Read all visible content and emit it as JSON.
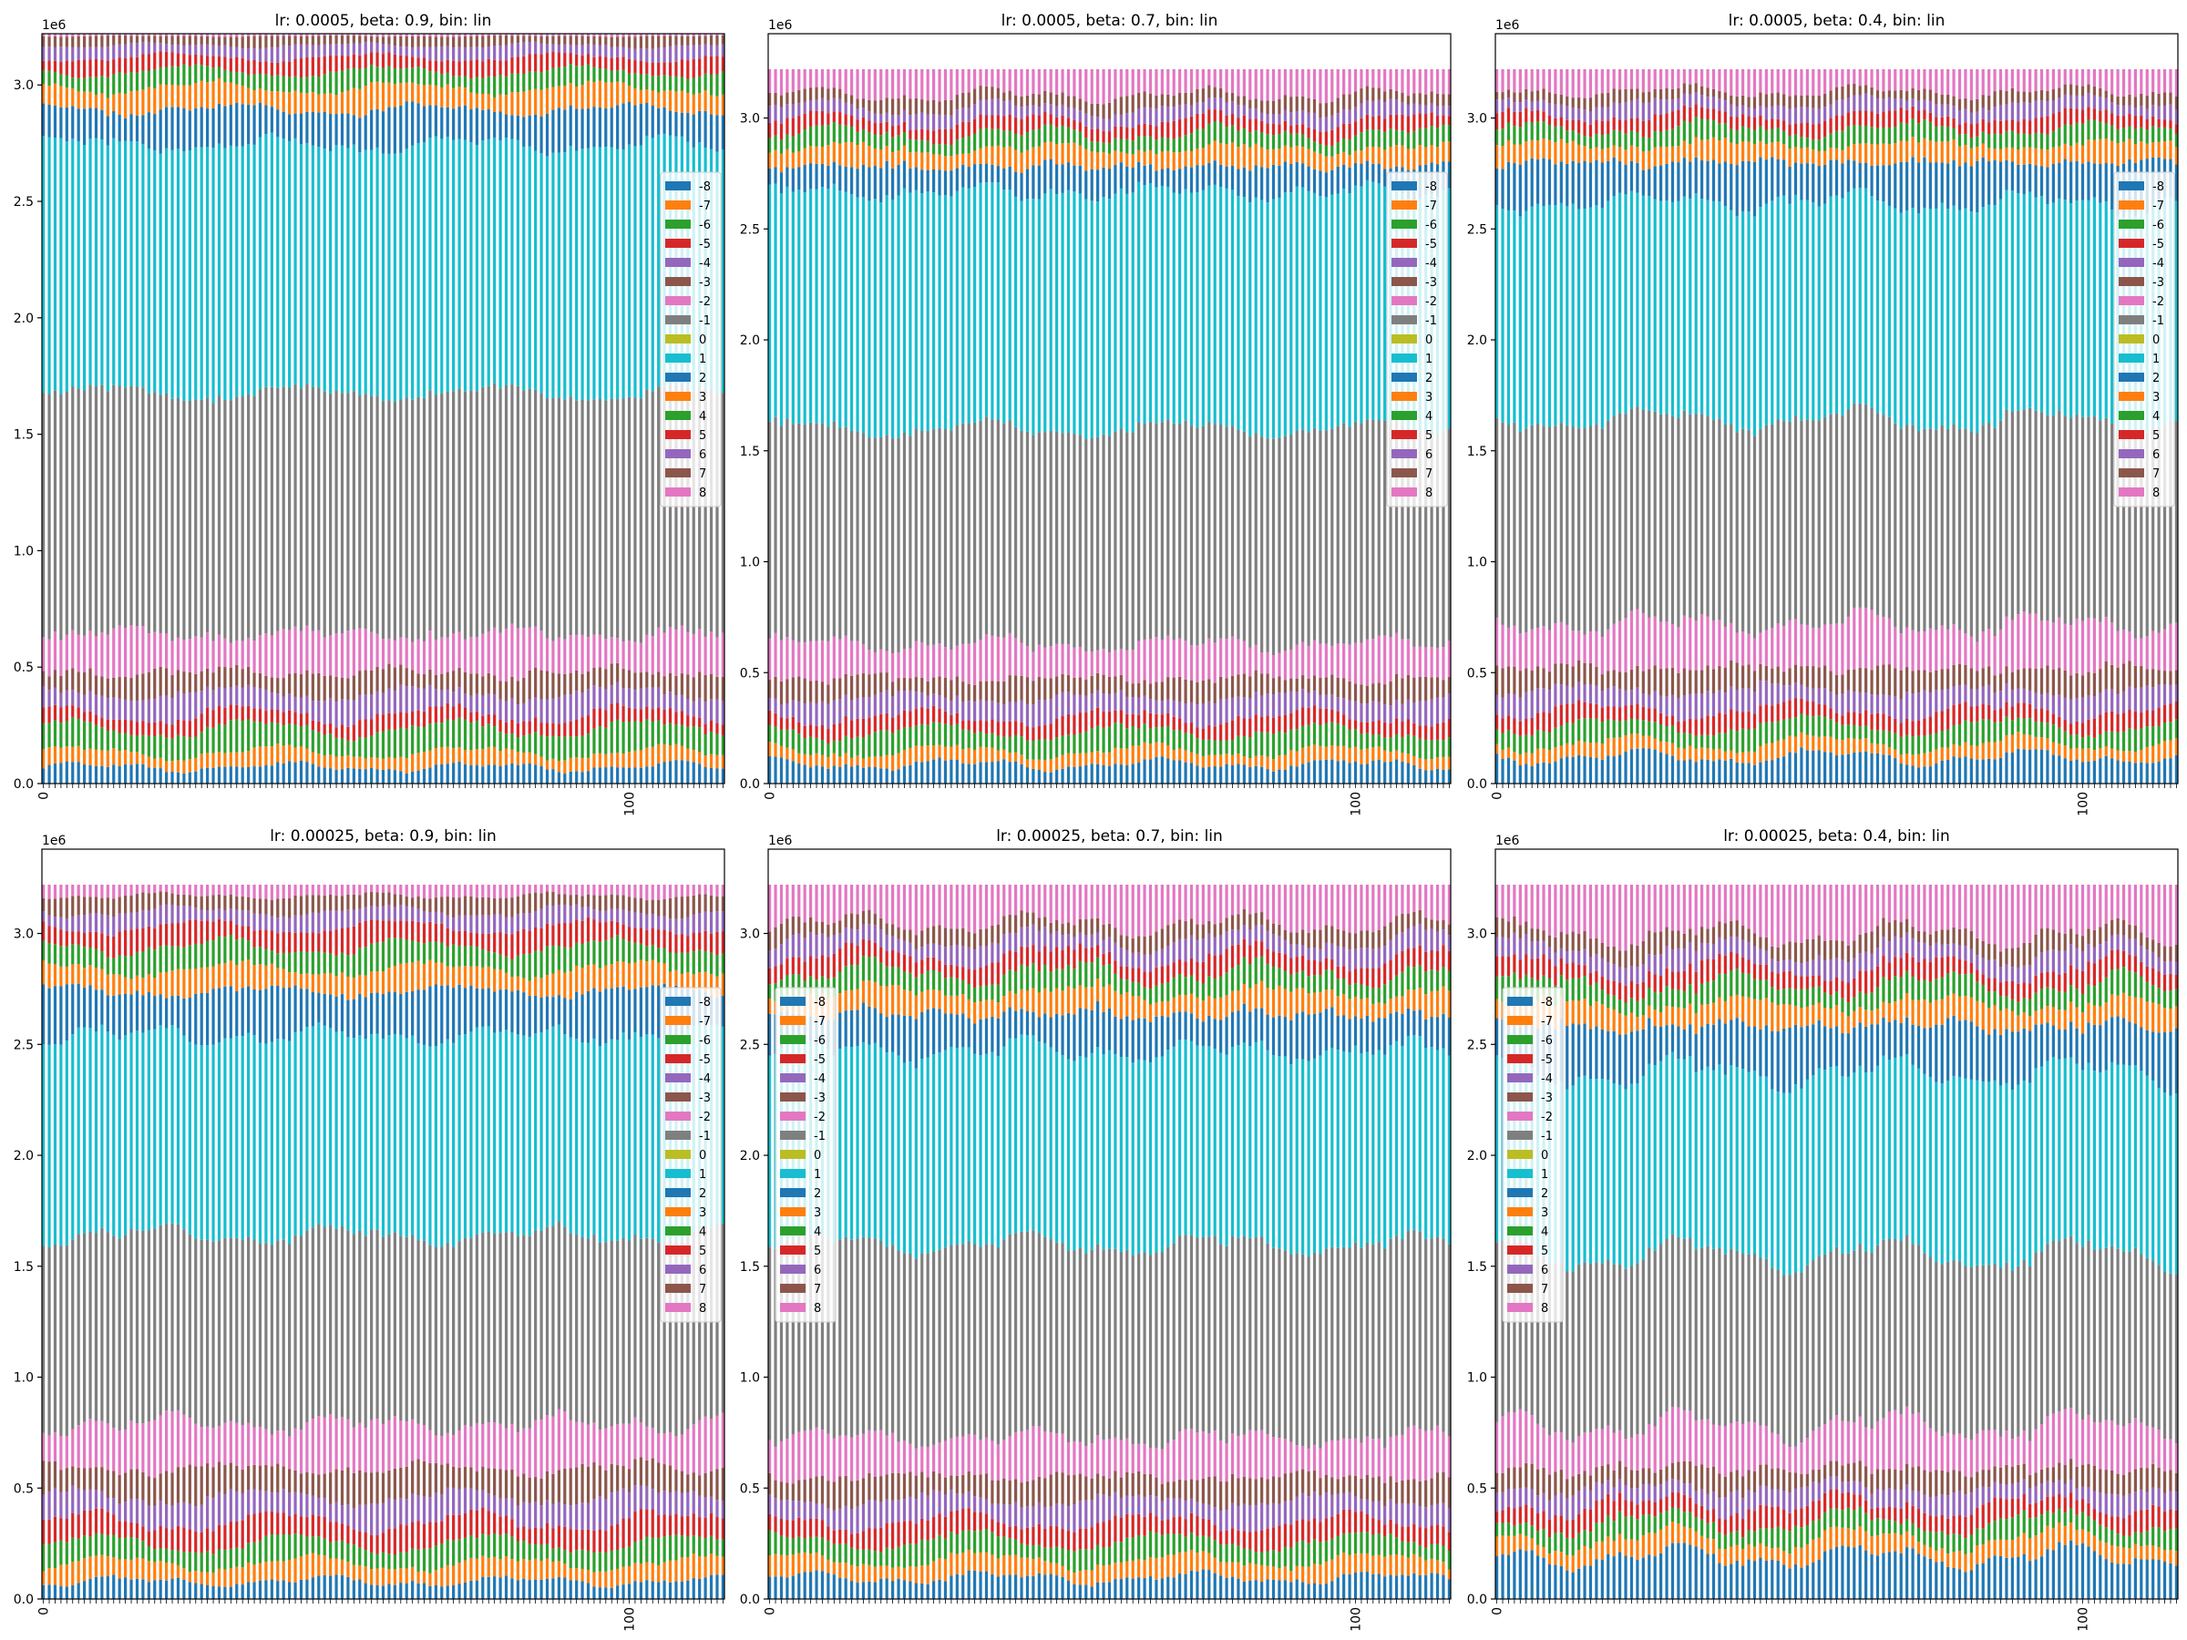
{
  "figure": {
    "panels": [
      {
        "title": "lr: 0.0005, beta: 0.9, bin: lin"
      },
      {
        "title": "lr: 0.0005, beta: 0.7, bin: lin"
      },
      {
        "title": "lr: 0.0005, beta: 0.4, bin: lin"
      },
      {
        "title": "lr: 0.00025, beta: 0.9, bin: lin"
      },
      {
        "title": "lr: 0.00025, beta: 0.7, bin: lin"
      },
      {
        "title": "lr: 0.00025, beta: 0.4, bin: lin"
      }
    ]
  },
  "chart_data": [
    {
      "type": "bar",
      "stacked": true,
      "title": "lr: 0.0005, beta: 0.9, bin: lin",
      "x_count": 117,
      "xticks": [
        0,
        100
      ],
      "xtick_rotation": 90,
      "yticks": [
        0.0,
        0.5,
        1.0,
        1.5,
        2.0,
        2.5,
        3.0
      ],
      "ylim": [
        0,
        3.22
      ],
      "y_offset_label": "1e6",
      "stack_total": 3.22,
      "legend_position": "right",
      "series": [
        {
          "name": "-8",
          "value": 0.07
        },
        {
          "name": "-7",
          "value": 0.06
        },
        {
          "name": "-6",
          "value": 0.1
        },
        {
          "name": "-5",
          "value": 0.06
        },
        {
          "name": "-4",
          "value": 0.09
        },
        {
          "name": "-3",
          "value": 0.09
        },
        {
          "name": "-2",
          "value": 0.16
        },
        {
          "name": "-1",
          "value": 1.02
        },
        {
          "name": "0",
          "value": 0.0
        },
        {
          "name": "1",
          "value": 1.05
        },
        {
          "name": "2",
          "value": 0.15
        },
        {
          "name": "3",
          "value": 0.09
        },
        {
          "name": "4",
          "value": 0.07
        },
        {
          "name": "5",
          "value": 0.06
        },
        {
          "name": "6",
          "value": 0.05
        },
        {
          "name": "7",
          "value": 0.04
        },
        {
          "name": "8",
          "value": 0.01
        }
      ]
    },
    {
      "type": "bar",
      "stacked": true,
      "title": "lr: 0.0005, beta: 0.7, bin: lin",
      "x_count": 117,
      "xticks": [
        0,
        100
      ],
      "xtick_rotation": 90,
      "yticks": [
        0.0,
        0.5,
        1.0,
        1.5,
        2.0,
        2.5,
        3.0
      ],
      "ylim": [
        0,
        3.38
      ],
      "y_offset_label": "1e6",
      "stack_total": 3.22,
      "legend_position": "right",
      "series": [
        {
          "name": "-8",
          "value": 0.09
        },
        {
          "name": "-7",
          "value": 0.06
        },
        {
          "name": "-6",
          "value": 0.09
        },
        {
          "name": "-5",
          "value": 0.07
        },
        {
          "name": "-4",
          "value": 0.09
        },
        {
          "name": "-3",
          "value": 0.09
        },
        {
          "name": "-2",
          "value": 0.16
        },
        {
          "name": "-1",
          "value": 1.0
        },
        {
          "name": "0",
          "value": 0.0
        },
        {
          "name": "1",
          "value": 1.1
        },
        {
          "name": "2",
          "value": 0.12
        },
        {
          "name": "3",
          "value": 0.08
        },
        {
          "name": "4",
          "value": 0.07
        },
        {
          "name": "5",
          "value": 0.06
        },
        {
          "name": "6",
          "value": 0.06
        },
        {
          "name": "7",
          "value": 0.06
        },
        {
          "name": "8",
          "value": 0.12
        }
      ]
    },
    {
      "type": "bar",
      "stacked": true,
      "title": "lr: 0.0005, beta: 0.4, bin: lin",
      "x_count": 117,
      "xticks": [
        0,
        100
      ],
      "xtick_rotation": 90,
      "yticks": [
        0.0,
        0.5,
        1.0,
        1.5,
        2.0,
        2.5,
        3.0
      ],
      "ylim": [
        0,
        3.38
      ],
      "y_offset_label": "1e6",
      "stack_total": 3.22,
      "legend_position": "right",
      "series": [
        {
          "name": "-8",
          "value": 0.12
        },
        {
          "name": "-7",
          "value": 0.06
        },
        {
          "name": "-6",
          "value": 0.08
        },
        {
          "name": "-5",
          "value": 0.07
        },
        {
          "name": "-4",
          "value": 0.09
        },
        {
          "name": "-3",
          "value": 0.1
        },
        {
          "name": "-2",
          "value": 0.2
        },
        {
          "name": "-1",
          "value": 0.92
        },
        {
          "name": "0",
          "value": 0.0
        },
        {
          "name": "1",
          "value": 0.98
        },
        {
          "name": "2",
          "value": 0.18
        },
        {
          "name": "3",
          "value": 0.08
        },
        {
          "name": "4",
          "value": 0.07
        },
        {
          "name": "5",
          "value": 0.06
        },
        {
          "name": "6",
          "value": 0.06
        },
        {
          "name": "7",
          "value": 0.05
        },
        {
          "name": "8",
          "value": 0.1
        }
      ]
    },
    {
      "type": "bar",
      "stacked": true,
      "title": "lr: 0.00025, beta: 0.9, bin: lin",
      "x_count": 117,
      "xticks": [
        0,
        100
      ],
      "xtick_rotation": 90,
      "yticks": [
        0.0,
        0.5,
        1.0,
        1.5,
        2.0,
        2.5,
        3.0
      ],
      "ylim": [
        0,
        3.38
      ],
      "y_offset_label": "1e6",
      "stack_total": 3.22,
      "legend_position": "right",
      "series": [
        {
          "name": "-8",
          "value": 0.08
        },
        {
          "name": "-7",
          "value": 0.08
        },
        {
          "name": "-6",
          "value": 0.09
        },
        {
          "name": "-5",
          "value": 0.1
        },
        {
          "name": "-4",
          "value": 0.11
        },
        {
          "name": "-3",
          "value": 0.13
        },
        {
          "name": "-2",
          "value": 0.2
        },
        {
          "name": "-1",
          "value": 0.85
        },
        {
          "name": "0",
          "value": 0.0
        },
        {
          "name": "1",
          "value": 0.9
        },
        {
          "name": "2",
          "value": 0.2
        },
        {
          "name": "3",
          "value": 0.1
        },
        {
          "name": "4",
          "value": 0.1
        },
        {
          "name": "5",
          "value": 0.09
        },
        {
          "name": "6",
          "value": 0.07
        },
        {
          "name": "7",
          "value": 0.07
        },
        {
          "name": "8",
          "value": 0.05
        }
      ]
    },
    {
      "type": "bar",
      "stacked": true,
      "title": "lr: 0.00025, beta: 0.7, bin: lin",
      "x_count": 117,
      "xticks": [
        0,
        100
      ],
      "xtick_rotation": 90,
      "yticks": [
        0.0,
        0.5,
        1.0,
        1.5,
        2.0,
        2.5,
        3.0
      ],
      "ylim": [
        0,
        3.38
      ],
      "y_offset_label": "1e6",
      "stack_total": 3.22,
      "legend_position": "left",
      "series": [
        {
          "name": "-8",
          "value": 0.1
        },
        {
          "name": "-7",
          "value": 0.08
        },
        {
          "name": "-6",
          "value": 0.09
        },
        {
          "name": "-5",
          "value": 0.09
        },
        {
          "name": "-4",
          "value": 0.1
        },
        {
          "name": "-3",
          "value": 0.11
        },
        {
          "name": "-2",
          "value": 0.18
        },
        {
          "name": "-1",
          "value": 0.9
        },
        {
          "name": "0",
          "value": 0.0
        },
        {
          "name": "1",
          "value": 0.9
        },
        {
          "name": "2",
          "value": 0.17
        },
        {
          "name": "3",
          "value": 0.1
        },
        {
          "name": "4",
          "value": 0.09
        },
        {
          "name": "5",
          "value": 0.08
        },
        {
          "name": "6",
          "value": 0.08
        },
        {
          "name": "7",
          "value": 0.07
        },
        {
          "name": "8",
          "value": 0.18
        }
      ]
    },
    {
      "type": "bar",
      "stacked": true,
      "title": "lr: 0.00025, beta: 0.4, bin: lin",
      "x_count": 117,
      "xticks": [
        0,
        100
      ],
      "xtick_rotation": 90,
      "yticks": [
        0.0,
        0.5,
        1.0,
        1.5,
        2.0,
        2.5,
        3.0
      ],
      "ylim": [
        0,
        3.38
      ],
      "y_offset_label": "1e6",
      "stack_total": 3.22,
      "legend_position": "left",
      "series": [
        {
          "name": "-8",
          "value": 0.2
        },
        {
          "name": "-7",
          "value": 0.08
        },
        {
          "name": "-6",
          "value": 0.08
        },
        {
          "name": "-5",
          "value": 0.08
        },
        {
          "name": "-4",
          "value": 0.08
        },
        {
          "name": "-3",
          "value": 0.09
        },
        {
          "name": "-2",
          "value": 0.2
        },
        {
          "name": "-1",
          "value": 0.8
        },
        {
          "name": "0",
          "value": 0.0
        },
        {
          "name": "1",
          "value": 0.85
        },
        {
          "name": "2",
          "value": 0.22
        },
        {
          "name": "3",
          "value": 0.1
        },
        {
          "name": "4",
          "value": 0.09
        },
        {
          "name": "5",
          "value": 0.08
        },
        {
          "name": "6",
          "value": 0.08
        },
        {
          "name": "7",
          "value": 0.08
        },
        {
          "name": "8",
          "value": 0.23
        }
      ]
    }
  ],
  "colors": {
    "-8": "#1f77b4",
    "-7": "#ff7f0e",
    "-6": "#2ca02c",
    "-5": "#d62728",
    "-4": "#9467bd",
    "-3": "#8c564b",
    "-2": "#e377c2",
    "-1": "#7f7f7f",
    "0": "#bcbd22",
    "1": "#17becf",
    "2": "#1f77b4",
    "3": "#ff7f0e",
    "4": "#2ca02c",
    "5": "#d62728",
    "6": "#9467bd",
    "7": "#8c564b",
    "8": "#e377c2"
  }
}
